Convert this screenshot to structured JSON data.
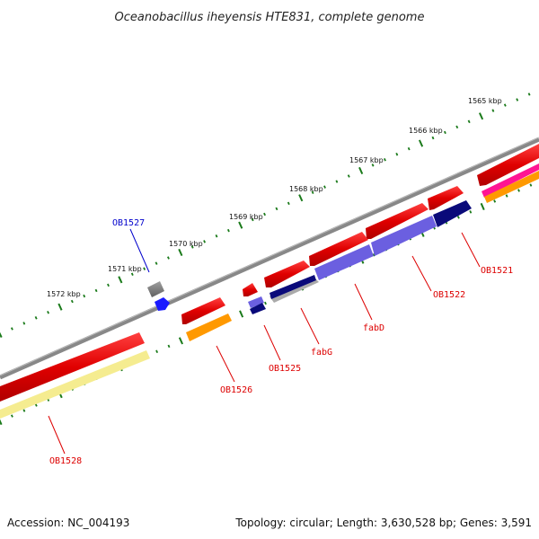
{
  "title": "Oceanobacillus iheyensis HTE831, complete genome",
  "accession": "Accession: NC_004193",
  "summary": "Topology: circular; Length: 3,630,528 bp; Genes: 3,591",
  "colors": {
    "backbone": "#808080",
    "cds": "#ff0000",
    "gene_blue": "#4c3fd6",
    "gene_navy": "#0a0a7a",
    "orange": "#ff9900",
    "yellow": "#f5ec90",
    "pink": "#ff1493",
    "grey_feature": "#555555",
    "tick": "#1a7a1a",
    "label_red": "#dd0000",
    "label_blue": "#0000cc"
  },
  "ticks": [
    "1565 kbp",
    "1566 kbp",
    "1567 kbp",
    "1568 kbp",
    "1569 kbp",
    "1570 kbp",
    "1571 kbp",
    "1572 kbp"
  ],
  "genes": [
    {
      "label": "OB1521",
      "color": "label_red"
    },
    {
      "label": "OB1522",
      "color": "label_red"
    },
    {
      "label": "fabD",
      "color": "label_red"
    },
    {
      "label": "fabG",
      "color": "label_red"
    },
    {
      "label": "OB1525",
      "color": "label_red"
    },
    {
      "label": "OB1526",
      "color": "label_red"
    },
    {
      "label": "OB1527",
      "color": "label_blue"
    },
    {
      "label": "OB1528",
      "color": "label_red"
    }
  ]
}
